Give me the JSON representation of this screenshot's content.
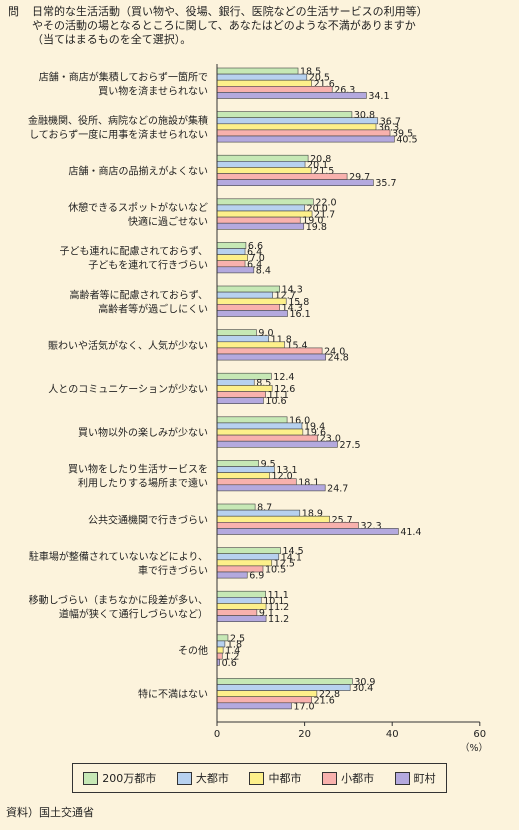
{
  "question": {
    "mark": "問",
    "lines": [
      "日常的な生活活動（買い物や、役場、銀行、医院などの生活サービスの利用等）",
      "やその活動の場となるところに関して、あなたはどのような不満がありますか",
      "（当てはまるものを全て選択）。"
    ]
  },
  "chart_data": {
    "type": "bar",
    "orientation": "horizontal",
    "unit_label": "（%）",
    "xlim": [
      0,
      60
    ],
    "xticks": [
      0,
      20,
      40,
      60
    ],
    "grid": false,
    "legend_position": "bottom",
    "colors": [
      "#c6e8b5",
      "#b7d1ef",
      "#fdf08a",
      "#f8b1ad",
      "#b4a9de"
    ],
    "categories": [
      [
        "店舗・商店が集積しておらず一箇所で",
        "買い物を済ませられない"
      ],
      [
        "金融機関、役所、病院などの施設が集積",
        "しておらず一度に用事を済ませられない"
      ],
      [
        "店舗・商店の品揃えがよくない"
      ],
      [
        "休憩できるスポットがないなど",
        "快適に過ごせない"
      ],
      [
        "子ども連れに配慮されておらず、",
        "子どもを連れて行きづらい"
      ],
      [
        "高齢者等に配慮されておらず、",
        "高齢者等が過ごしにくい"
      ],
      [
        "賑わいや活気がなく、人気が少ない"
      ],
      [
        "人とのコミュニケーションが少ない"
      ],
      [
        "買い物以外の楽しみが少ない"
      ],
      [
        "買い物をしたり生活サービスを",
        "利用したりする場所まで遠い"
      ],
      [
        "公共交通機関で行きづらい"
      ],
      [
        "駐車場が整備されていないなどにより、",
        "車で行きづらい"
      ],
      [
        "移動しづらい（まちなかに段差が多い、",
        "道幅が狭くて通行しづらいなど）"
      ],
      [
        "その他"
      ],
      [
        "特に不満はない"
      ]
    ],
    "series": [
      {
        "name": "200万都市",
        "values": [
          18.5,
          30.8,
          20.8,
          22.0,
          6.6,
          14.3,
          9.0,
          12.4,
          16.0,
          9.5,
          8.7,
          14.5,
          11.1,
          2.5,
          30.9
        ]
      },
      {
        "name": "大都市",
        "values": [
          20.5,
          36.7,
          20.1,
          20.0,
          6.4,
          12.7,
          11.8,
          8.5,
          19.4,
          13.1,
          18.9,
          14.1,
          10.1,
          1.8,
          30.4
        ]
      },
      {
        "name": "中都市",
        "values": [
          21.6,
          36.3,
          21.5,
          21.7,
          7.0,
          15.8,
          15.4,
          12.6,
          19.6,
          12.0,
          25.7,
          12.5,
          11.2,
          1.4,
          22.8
        ]
      },
      {
        "name": "小都市",
        "values": [
          26.3,
          39.5,
          29.7,
          19.0,
          6.4,
          14.3,
          24.0,
          11.1,
          23.0,
          18.1,
          32.3,
          10.5,
          9.1,
          1.2,
          21.6
        ]
      },
      {
        "name": "町村",
        "values": [
          34.1,
          40.5,
          35.7,
          19.8,
          8.4,
          16.1,
          24.8,
          10.6,
          27.5,
          24.7,
          41.4,
          6.9,
          11.2,
          0.6,
          17.0
        ]
      }
    ]
  },
  "source": "資料）国土交通省"
}
